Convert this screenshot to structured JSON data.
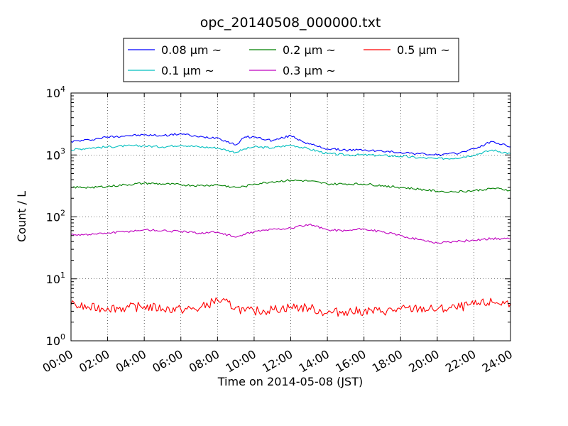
{
  "chart_data": {
    "type": "line",
    "title": "opc_20140508_000000.txt",
    "xlabel": "Time on 2014-05-08 (JST)",
    "ylabel": "Count / L",
    "yscale": "log",
    "ylim": [
      1,
      10000
    ],
    "xlim": [
      "2014-05-08T00:00",
      "2014-05-09T00:00"
    ],
    "x_tick_labels": [
      "00:00",
      "02:00",
      "04:00",
      "06:00",
      "08:00",
      "10:00",
      "12:00",
      "14:00",
      "16:00",
      "18:00",
      "20:00",
      "22:00",
      "24:00"
    ],
    "y_tick_labels": [
      {
        "base": "10",
        "exp": "0"
      },
      {
        "base": "10",
        "exp": "1"
      },
      {
        "base": "10",
        "exp": "2"
      },
      {
        "base": "10",
        "exp": "3"
      },
      {
        "base": "10",
        "exp": "4"
      }
    ],
    "grid": true,
    "legend_placement": "above plot, outside",
    "x": [
      "00:00",
      "01:00",
      "02:00",
      "03:00",
      "04:00",
      "05:00",
      "06:00",
      "07:00",
      "08:00",
      "09:00",
      "09:30",
      "10:00",
      "11:00",
      "12:00",
      "13:00",
      "14:00",
      "15:00",
      "16:00",
      "17:00",
      "18:00",
      "19:00",
      "20:00",
      "21:00",
      "22:00",
      "23:00",
      "24:00"
    ],
    "series": [
      {
        "name": "0.08 μm ~",
        "color": "#0000ff",
        "values": [
          1650,
          1750,
          1950,
          2050,
          2100,
          2050,
          2200,
          1950,
          1900,
          1450,
          1950,
          1950,
          1700,
          2050,
          1500,
          1250,
          1200,
          1200,
          1150,
          1100,
          1050,
          1000,
          1050,
          1250,
          1650,
          1350
        ]
      },
      {
        "name": "0.1 μm ~",
        "color": "#00bfbf",
        "values": [
          1200,
          1300,
          1350,
          1400,
          1400,
          1350,
          1450,
          1350,
          1300,
          1100,
          1250,
          1350,
          1300,
          1450,
          1250,
          1050,
          1000,
          1000,
          980,
          950,
          900,
          870,
          890,
          1000,
          1200,
          1050
        ]
      },
      {
        "name": "0.2 μm ~",
        "color": "#008000",
        "values": [
          300,
          300,
          310,
          330,
          350,
          340,
          330,
          320,
          330,
          300,
          310,
          340,
          370,
          390,
          380,
          340,
          340,
          340,
          320,
          300,
          280,
          260,
          255,
          265,
          290,
          270
        ]
      },
      {
        "name": "0.3 μm ~",
        "color": "#bf00bf",
        "values": [
          52,
          52,
          55,
          58,
          62,
          60,
          58,
          55,
          57,
          47,
          52,
          58,
          63,
          66,
          75,
          62,
          60,
          64,
          57,
          50,
          43,
          38,
          40,
          42,
          45,
          44
        ]
      },
      {
        "name": "0.5 μm ~",
        "color": "#ff0000",
        "values": [
          3.8,
          3.4,
          3.4,
          3.4,
          3.6,
          3.3,
          3.2,
          3.3,
          4.6,
          3.5,
          3.0,
          3.0,
          3.2,
          3.5,
          3.4,
          2.8,
          3.0,
          3.0,
          3.0,
          3.2,
          3.3,
          3.2,
          3.4,
          3.8,
          4.2,
          4.0
        ]
      }
    ]
  }
}
